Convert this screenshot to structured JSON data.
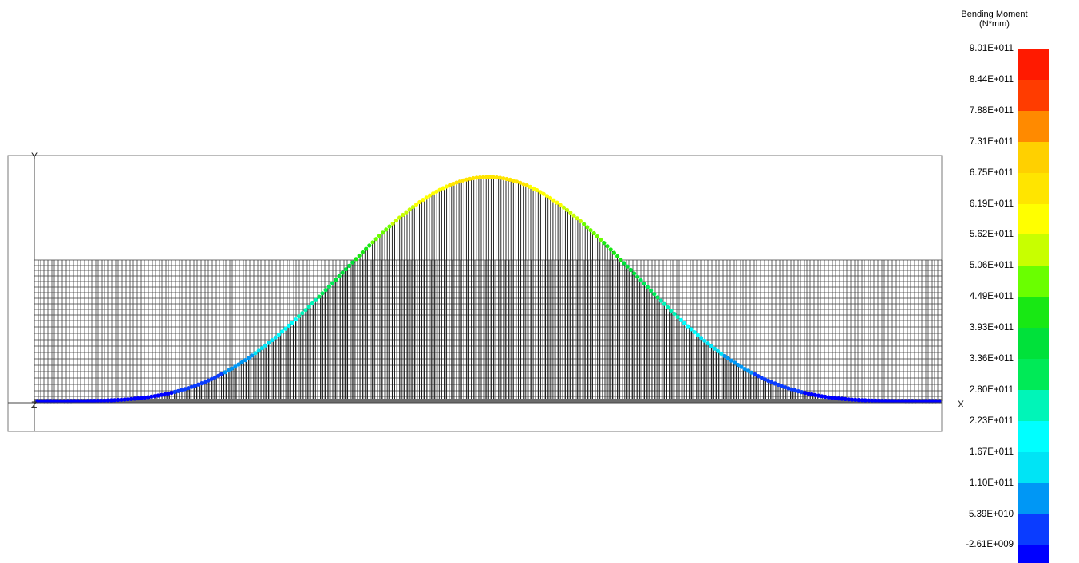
{
  "viewport": {
    "axis_labels": {
      "y": "Y",
      "x": "X",
      "z": "Z"
    }
  },
  "legend": {
    "title_line1": "Bending Moment",
    "title_line2": "(N*mm)",
    "ticks": [
      "9.01E+011",
      "8.44E+011",
      "7.88E+011",
      "7.31E+011",
      "6.75E+011",
      "6.19E+011",
      "5.62E+011",
      "5.06E+011",
      "4.49E+011",
      "3.93E+011",
      "3.36E+011",
      "2.80E+011",
      "2.23E+011",
      "1.67E+011",
      "1.10E+011",
      "5.39E+010",
      "-2.61E+009"
    ],
    "colors": [
      "#ff1a00",
      "#ff3c00",
      "#ff8a00",
      "#ffd000",
      "#ffe500",
      "#ffff00",
      "#c8ff00",
      "#6aff00",
      "#18e814",
      "#00e13a",
      "#00ea57",
      "#00f5b8",
      "#00ffff",
      "#00e4f5",
      "#0097f5",
      "#0a3cff",
      "#0000ff"
    ]
  },
  "diagram": {
    "peak_value": 675000000000.0,
    "value_min": -2610000000.0,
    "value_max": 901000000000.0
  }
}
